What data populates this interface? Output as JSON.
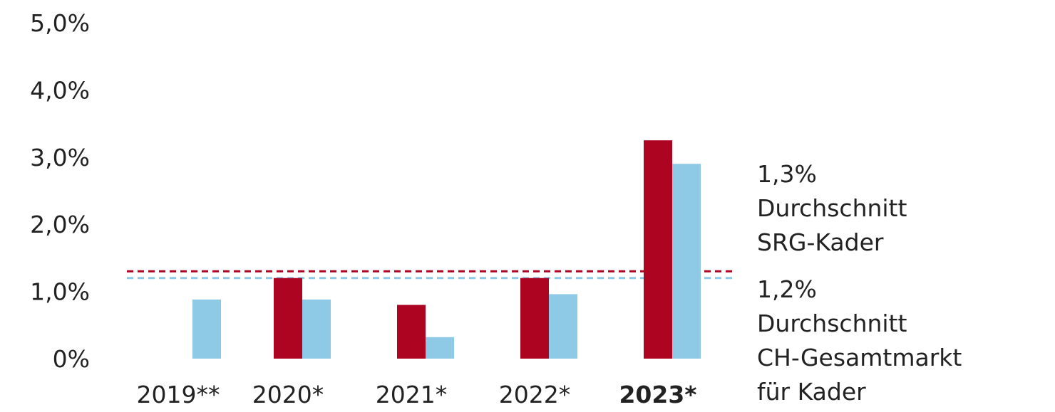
{
  "chart_data": {
    "type": "bar",
    "categories": [
      "2019**",
      "2020*",
      "2021*",
      "2022*",
      "2023*"
    ],
    "highlight_category": "2023*",
    "series": [
      {
        "color": "#ad0421",
        "values": [
          null,
          1.2,
          0.8,
          1.2,
          3.25
        ]
      },
      {
        "color": "#8ecae6",
        "values": [
          0.88,
          0.88,
          0.32,
          0.96,
          2.9
        ]
      }
    ],
    "y_ticks": [
      "0%",
      "1,0%",
      "2,0%",
      "3,0%",
      "4,0%",
      "5,0%"
    ],
    "ylim": [
      0,
      5
    ],
    "reference_lines": [
      {
        "value": 1.3,
        "color": "#ad0421",
        "style": "dashed",
        "lines": [
          "1,3%",
          "Durchschnitt",
          "SRG-Kader"
        ]
      },
      {
        "value": 1.2,
        "color": "#8ecae6",
        "style": "dashed",
        "lines": [
          "1,2%",
          "Durchschnitt",
          "CH-Gesamtmarkt",
          "für Kader"
        ]
      }
    ],
    "grid": false,
    "legend": "none"
  }
}
